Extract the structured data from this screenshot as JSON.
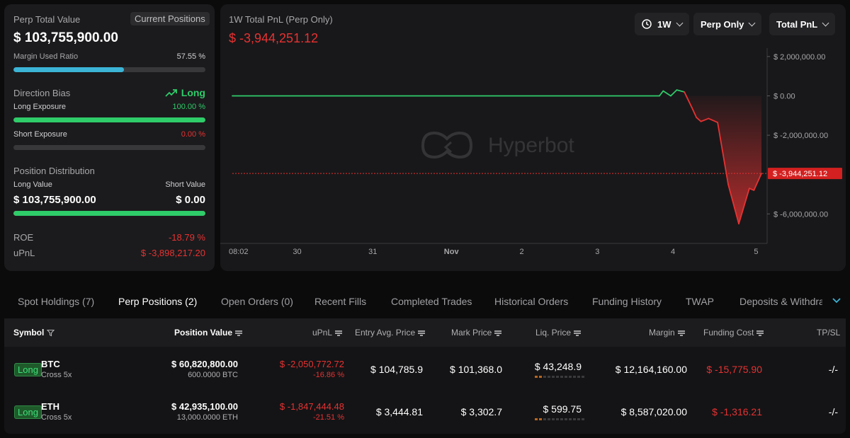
{
  "summary": {
    "perp_total_label": "Perp Total Value",
    "current_positions_btn": "Current Positions",
    "perp_total_value": "$ 103,755,900.00",
    "margin_used_label": "Margin Used Ratio",
    "margin_used_value": "57.55 %",
    "margin_used_fraction": 0.5755,
    "direction_bias_label": "Direction Bias",
    "direction_bias_value": "Long",
    "long_exposure_label": "Long Exposure",
    "long_exposure_value": "100.00 %",
    "long_exposure_fraction": 1.0,
    "short_exposure_label": "Short Exposure",
    "short_exposure_value": "0.00 %",
    "short_exposure_fraction": 0.0,
    "position_distribution_label": "Position Distribution",
    "long_value_label": "Long Value",
    "short_value_label": "Short Value",
    "long_value": "$ 103,755,900.00",
    "short_value": "$ 0.00",
    "long_fraction": 1.0,
    "roe_label": "ROE",
    "roe_value": "-18.79 %",
    "upnl_label": "uPnL",
    "upnl_value": "$ -3,898,217.20"
  },
  "pnl": {
    "title": "1W Total PnL (Perp Only)",
    "value": "$ -3,944,251.12",
    "watermark": "Hyperbot",
    "range_btn": "1W",
    "filter_btn": "Perp Only",
    "metric_btn": "Total PnL"
  },
  "colors": {
    "green": "#2fcc6a",
    "red": "#e63232",
    "bar_blue": "#3bb4d6",
    "badge_bg": "#1f5a2b"
  },
  "chart_data": {
    "type": "line",
    "title": "1W Total PnL (Perp Only)",
    "x_ticks": [
      "08:02",
      "30",
      "31",
      "Nov",
      "2",
      "3",
      "4",
      "5"
    ],
    "y_ticks": [
      "$ 2,000,000.00",
      "$ 0.00",
      "$ -2,000,000.00",
      "$ -6,000,000.00"
    ],
    "ylim": [
      -7500000,
      2500000
    ],
    "current_value_label": "$ -3,944,251.12",
    "current_value": -3944251.12,
    "x": [
      0,
      5.65,
      5.7,
      5.8,
      5.88,
      5.98,
      6.08,
      6.14,
      6.2,
      6.3,
      6.42,
      6.56,
      6.7,
      6.84,
      6.9,
      7.0
    ],
    "values": [
      0,
      0,
      250000,
      0,
      300000,
      200000,
      -600000,
      -1100000,
      -1300000,
      -1150000,
      -1350000,
      -4500000,
      -6500000,
      -4700000,
      -4800000,
      -3944251.12
    ],
    "series": [
      {
        "values_positive_color": "#2fcc6a",
        "values_negative_color": "#e63232"
      }
    ]
  },
  "tabs": [
    "Spot Holdings (7)",
    "Perp Positions (2)",
    "Open Orders (0)",
    "Recent Fills",
    "Completed Trades",
    "Historical Orders",
    "Funding History",
    "TWAP",
    "Deposits & Withdraw"
  ],
  "table": {
    "headers": [
      "Symbol",
      "Position Value",
      "uPnL",
      "Entry Avg. Price",
      "Mark Price",
      "Liq. Price",
      "Margin",
      "Funding Cost",
      "TP/SL"
    ],
    "rows": [
      {
        "side": "Long",
        "symbol": "BTC",
        "mode": "Cross 5x",
        "position_value": "$ 60,820,800.00",
        "position_size": "600.0000 BTC",
        "upnl": "$ -2,050,772.72",
        "upnl_pct": "-16.86 %",
        "entry": "$ 104,785.9",
        "mark": "$ 101,368.0",
        "liq": "$ 43,248.9",
        "liq_risk": 0.15,
        "margin": "$ 12,164,160.00",
        "funding": "$ -15,775.90",
        "tpsl": "-/-"
      },
      {
        "side": "Long",
        "symbol": "ETH",
        "mode": "Cross 5x",
        "position_value": "$ 42,935,100.00",
        "position_size": "13,000.0000 ETH",
        "upnl": "$ -1,847,444.48",
        "upnl_pct": "-21.51 %",
        "entry": "$ 3,444.81",
        "mark": "$ 3,302.7",
        "liq": "$ 599.75",
        "liq_risk": 0.15,
        "margin": "$ 8,587,020.00",
        "funding": "$ -1,316.21",
        "tpsl": "-/-"
      }
    ]
  }
}
